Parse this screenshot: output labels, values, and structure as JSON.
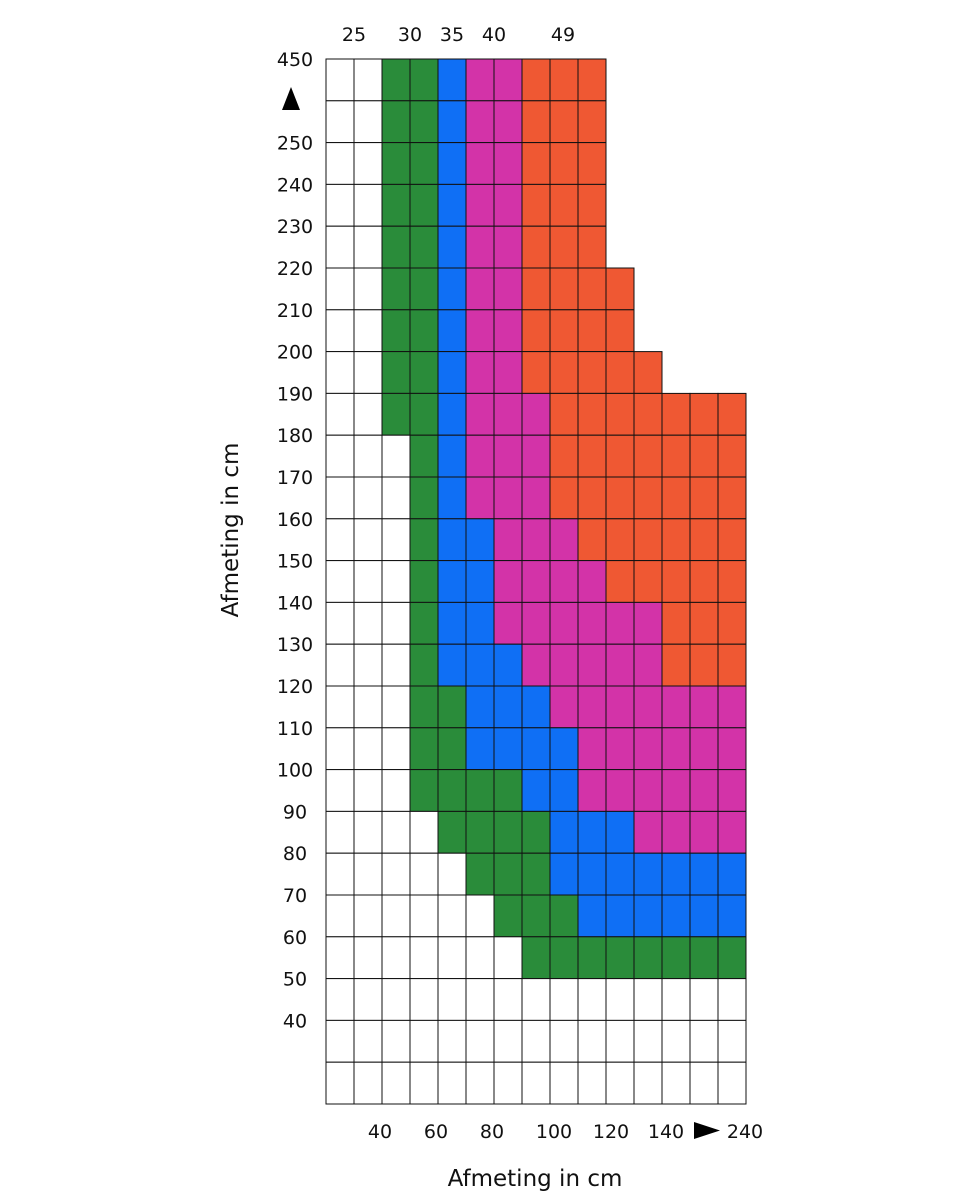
{
  "chart_data": {
    "type": "heatmap",
    "xlabel": "Afmeting in cm",
    "ylabel": "Afmeting in cm",
    "x_tick_labels": [
      "40",
      "60",
      "80",
      "100",
      "120",
      "140",
      "240"
    ],
    "y_tick_labels": [
      "450",
      "250",
      "240",
      "230",
      "220",
      "210",
      "200",
      "190",
      "180",
      "170",
      "160",
      "150",
      "140",
      "130",
      "120",
      "110",
      "100",
      "90",
      "80",
      "70",
      "60",
      "50",
      "40"
    ],
    "top_labels": [
      "25",
      "30",
      "35",
      "40",
      "49"
    ],
    "colors": {
      "25": "#ffffff",
      "30": "#2a8c3a",
      "35": "#0f6ff5",
      "40": "#d333a8",
      "49": "#ef5833"
    },
    "rows_top_to_bottom": [
      [
        "25",
        "25",
        "30",
        "30",
        "35",
        "40",
        "40",
        "49",
        "49",
        "49",
        null,
        null,
        null,
        null,
        null
      ],
      [
        "25",
        "25",
        "30",
        "30",
        "35",
        "40",
        "40",
        "49",
        "49",
        "49",
        null,
        null,
        null,
        null,
        null
      ],
      [
        "25",
        "25",
        "30",
        "30",
        "35",
        "40",
        "40",
        "49",
        "49",
        "49",
        null,
        null,
        null,
        null,
        null
      ],
      [
        "25",
        "25",
        "30",
        "30",
        "35",
        "40",
        "40",
        "49",
        "49",
        "49",
        null,
        null,
        null,
        null,
        null
      ],
      [
        "25",
        "25",
        "30",
        "30",
        "35",
        "40",
        "40",
        "49",
        "49",
        "49",
        null,
        null,
        null,
        null,
        null
      ],
      [
        "25",
        "25",
        "30",
        "30",
        "35",
        "40",
        "40",
        "49",
        "49",
        "49",
        "49",
        null,
        null,
        null,
        null
      ],
      [
        "25",
        "25",
        "30",
        "30",
        "35",
        "40",
        "40",
        "49",
        "49",
        "49",
        "49",
        null,
        null,
        null,
        null
      ],
      [
        "25",
        "25",
        "30",
        "30",
        "35",
        "40",
        "40",
        "49",
        "49",
        "49",
        "49",
        "49",
        null,
        null,
        null
      ],
      [
        "25",
        "25",
        "30",
        "30",
        "35",
        "40",
        "40",
        "40",
        "49",
        "49",
        "49",
        "49",
        "49",
        "49",
        "49"
      ],
      [
        "25",
        "25",
        "25",
        "30",
        "35",
        "40",
        "40",
        "40",
        "49",
        "49",
        "49",
        "49",
        "49",
        "49",
        "49"
      ],
      [
        "25",
        "25",
        "25",
        "30",
        "35",
        "40",
        "40",
        "40",
        "49",
        "49",
        "49",
        "49",
        "49",
        "49",
        "49"
      ],
      [
        "25",
        "25",
        "25",
        "30",
        "35",
        "35",
        "40",
        "40",
        "40",
        "49",
        "49",
        "49",
        "49",
        "49",
        "49"
      ],
      [
        "25",
        "25",
        "25",
        "30",
        "35",
        "35",
        "40",
        "40",
        "40",
        "40",
        "49",
        "49",
        "49",
        "49",
        "49"
      ],
      [
        "25",
        "25",
        "25",
        "30",
        "35",
        "35",
        "40",
        "40",
        "40",
        "40",
        "40",
        "40",
        "49",
        "49",
        "49"
      ],
      [
        "25",
        "25",
        "25",
        "30",
        "35",
        "35",
        "35",
        "40",
        "40",
        "40",
        "40",
        "40",
        "49",
        "49",
        "49"
      ],
      [
        "25",
        "25",
        "25",
        "30",
        "30",
        "35",
        "35",
        "35",
        "40",
        "40",
        "40",
        "40",
        "40",
        "40",
        "40"
      ],
      [
        "25",
        "25",
        "25",
        "30",
        "30",
        "35",
        "35",
        "35",
        "35",
        "40",
        "40",
        "40",
        "40",
        "40",
        "40"
      ],
      [
        "25",
        "25",
        "25",
        "30",
        "30",
        "30",
        "30",
        "35",
        "35",
        "40",
        "40",
        "40",
        "40",
        "40",
        "40"
      ],
      [
        "25",
        "25",
        "25",
        "25",
        "30",
        "30",
        "30",
        "30",
        "35",
        "35",
        "35",
        "40",
        "40",
        "40",
        "40"
      ],
      [
        "25",
        "25",
        "25",
        "25",
        "25",
        "30",
        "30",
        "30",
        "35",
        "35",
        "35",
        "35",
        "35",
        "35",
        "35"
      ],
      [
        "25",
        "25",
        "25",
        "25",
        "25",
        "25",
        "30",
        "30",
        "30",
        "35",
        "35",
        "35",
        "35",
        "35",
        "35"
      ],
      [
        "25",
        "25",
        "25",
        "25",
        "25",
        "25",
        "25",
        "30",
        "30",
        "30",
        "30",
        "30",
        "30",
        "30",
        "30"
      ],
      [
        "25",
        "25",
        "25",
        "25",
        "25",
        "25",
        "25",
        "25",
        "25",
        "25",
        "25",
        "25",
        "25",
        "25",
        "25"
      ],
      [
        "25",
        "25",
        "25",
        "25",
        "25",
        "25",
        "25",
        "25",
        "25",
        "25",
        "25",
        "25",
        "25",
        "25",
        "25"
      ],
      [
        "25",
        "25",
        "25",
        "25",
        "25",
        "25",
        "25",
        "25",
        "25",
        "25",
        "25",
        "25",
        "25",
        "25",
        "25"
      ]
    ]
  }
}
